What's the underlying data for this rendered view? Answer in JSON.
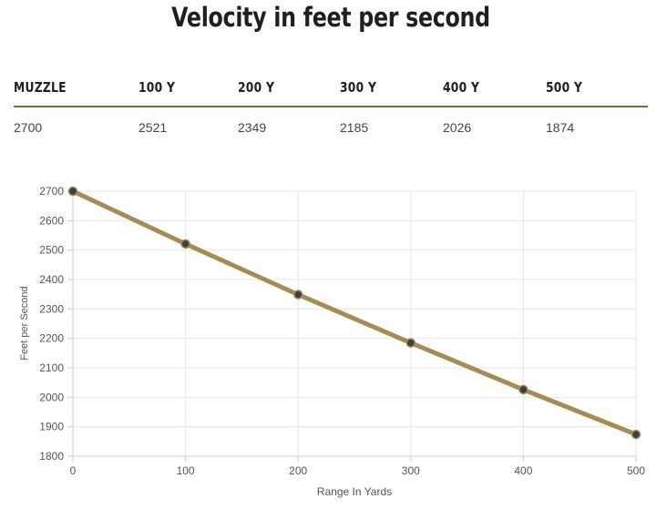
{
  "title": "Velocity in feet per second",
  "table": {
    "headers": [
      "MUZZLE",
      "100 Y",
      "200 Y",
      "300 Y",
      "400 Y",
      "500 Y"
    ],
    "values": [
      "2700",
      "2521",
      "2349",
      "2185",
      "2026",
      "1874"
    ]
  },
  "chart_data": {
    "type": "line",
    "xlabel": "Range In Yards",
    "ylabel": "Feet per Second",
    "x": [
      0,
      100,
      200,
      300,
      400,
      500
    ],
    "series": [
      {
        "values": [
          2700,
          2521,
          2349,
          2185,
          2026,
          1874
        ]
      }
    ],
    "xlim": [
      0,
      500
    ],
    "ylim": [
      1800,
      2700
    ],
    "xticks": [
      0,
      100,
      200,
      300,
      400,
      500
    ],
    "yticks": [
      1800,
      1900,
      2000,
      2100,
      2200,
      2300,
      2400,
      2500,
      2600,
      2700
    ],
    "grid": true,
    "line_color": "#a38d55",
    "marker_color": "#3f3f3f",
    "grid_color": "#e6e6e6"
  }
}
